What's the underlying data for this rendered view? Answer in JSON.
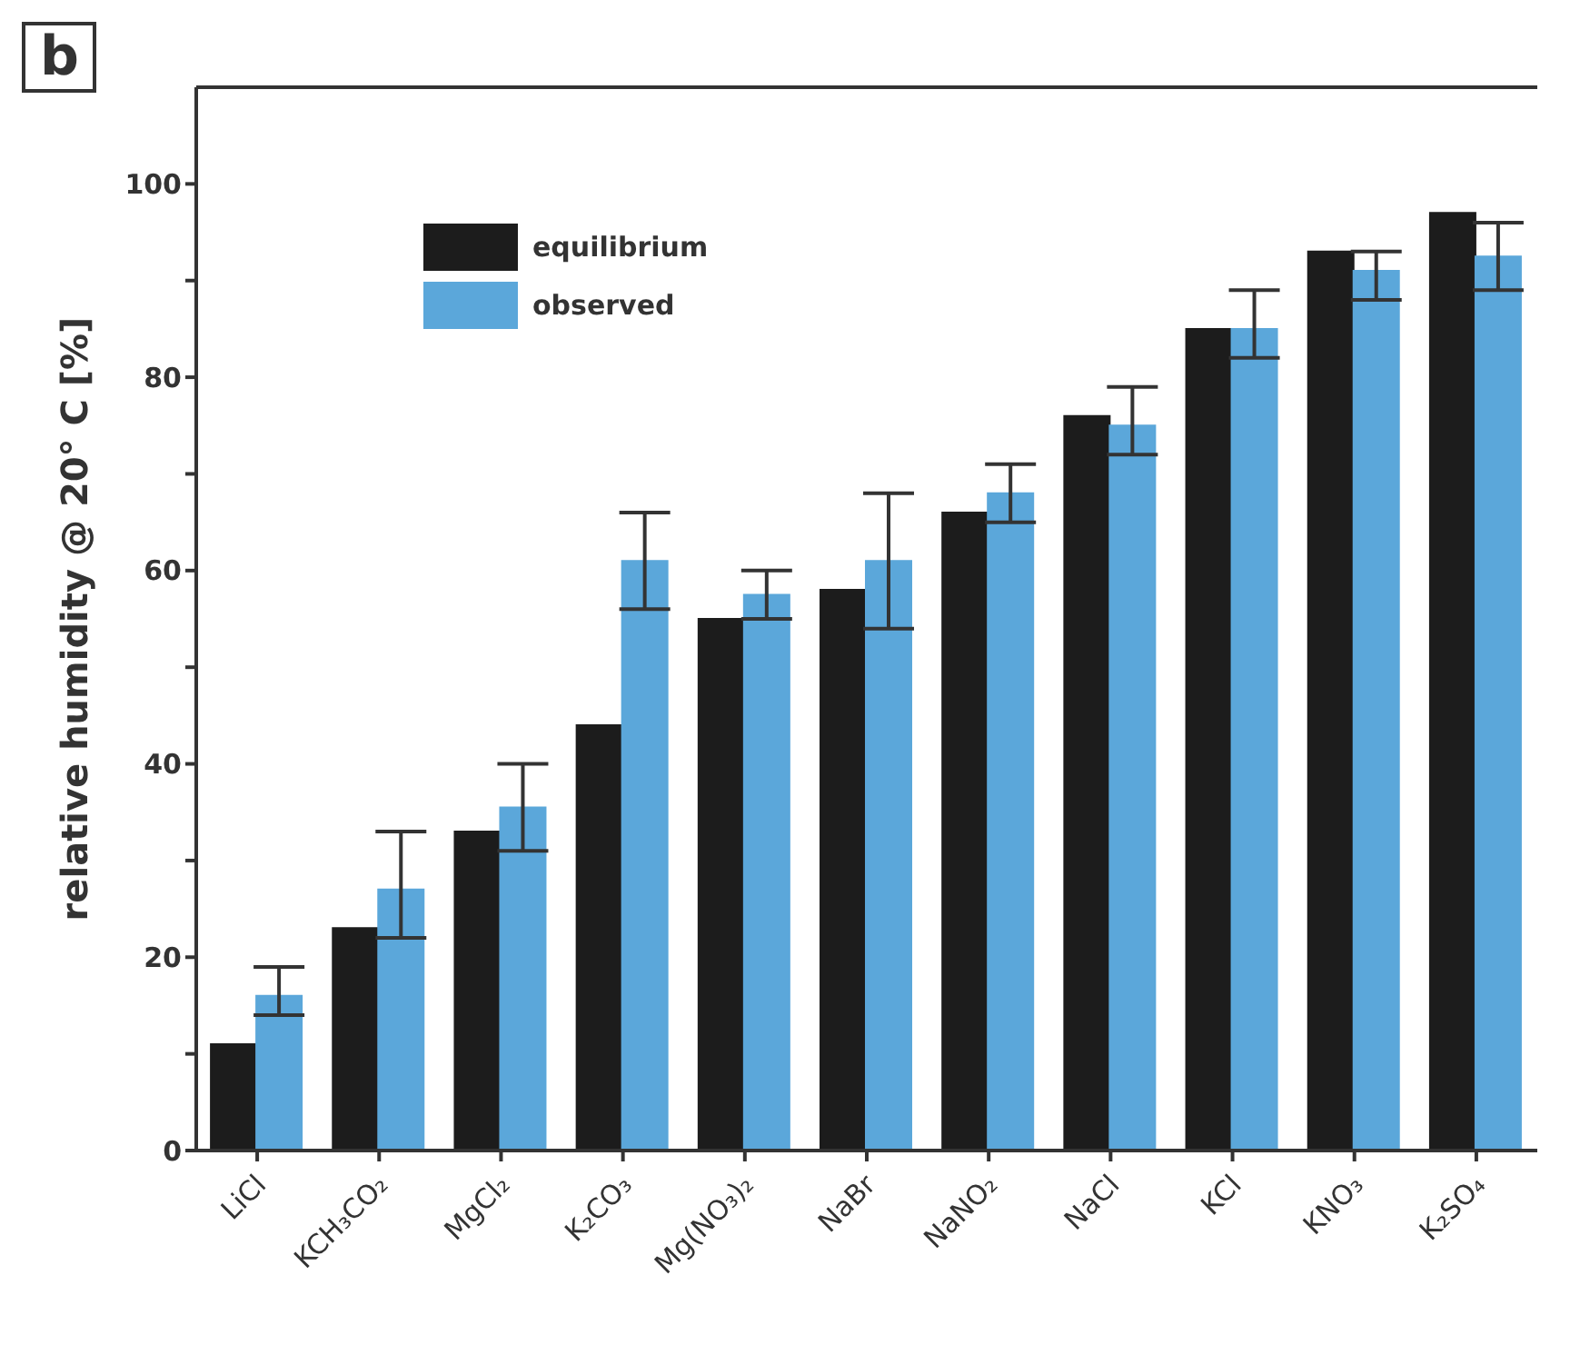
{
  "chart_data": {
    "type": "bar",
    "categories": [
      "LiCl",
      "KCH₃CO₂",
      "MgCl₂",
      "K₂CO₃",
      "Mg(NO₃)₂",
      "NaBr",
      "NaNO₂",
      "NaCl",
      "KCl",
      "KNO₃",
      "K₂SO₄"
    ],
    "series": [
      {
        "name": "equilibrium",
        "color": "#1c1c1c",
        "values": [
          11,
          23,
          33,
          44,
          55,
          58,
          66,
          76,
          85,
          93,
          97
        ]
      },
      {
        "name": "observed",
        "color": "#5ba7da",
        "values": [
          16,
          27,
          35.5,
          61,
          57.5,
          61,
          68,
          75,
          85,
          91,
          92.5
        ],
        "errors": [
          [
            14,
            19
          ],
          [
            22,
            33
          ],
          [
            31,
            40
          ],
          [
            56,
            66
          ],
          [
            55,
            60
          ],
          [
            54,
            68
          ],
          [
            65,
            71
          ],
          [
            72,
            79
          ],
          [
            82,
            89
          ],
          [
            88,
            93
          ],
          [
            89,
            96
          ]
        ]
      }
    ],
    "ylabel": "relative humidity @ 20° C [%]",
    "ylim": [
      0,
      110
    ],
    "yticks": [
      0,
      {
        "value": 10,
        "label": null
      },
      20,
      {
        "value": 30,
        "label": null
      },
      40,
      {
        "value": 50,
        "label": null
      },
      60,
      {
        "value": 70,
        "label": null
      },
      80,
      {
        "value": 90,
        "label": null
      },
      100
    ],
    "annotations": [
      "b"
    ],
    "legend": "top left"
  }
}
